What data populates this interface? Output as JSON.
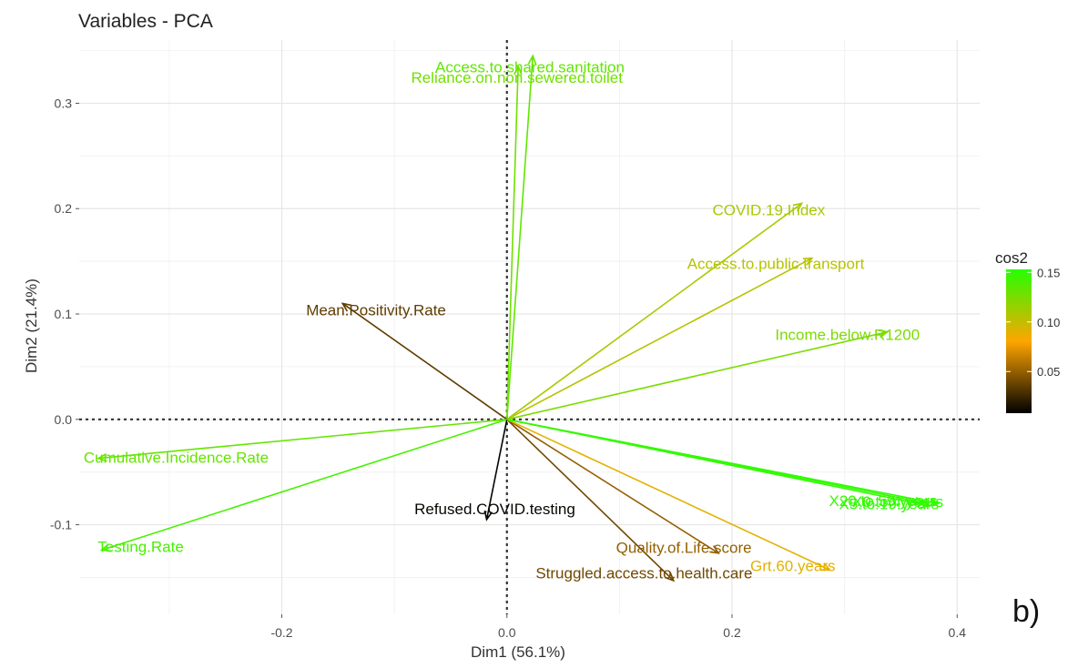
{
  "chart_data": {
    "type": "scatter",
    "subtype": "pca-variable-correlation-biplot",
    "title": "Variables - PCA",
    "xlabel": "Dim1 (56.1%)",
    "ylabel": "Dim2 (21.4%)",
    "xlim": [
      -0.38,
      0.42
    ],
    "ylim": [
      -0.185,
      0.36
    ],
    "xticks": [
      -0.2,
      0.0,
      0.2,
      0.4
    ],
    "xtick_labels": [
      "-0.2",
      "0.0",
      "0.2",
      "0.4"
    ],
    "yticks": [
      -0.1,
      0.0,
      0.1,
      0.2,
      0.3
    ],
    "ytick_labels": [
      "-0.1",
      "0.0",
      "0.1",
      "0.2",
      "0.3"
    ],
    "grid": true,
    "reference_lines": {
      "x": 0,
      "y": 0,
      "style": "dotted"
    },
    "color_scale": {
      "title": "cos2",
      "low": "#000000",
      "mid": "#ffa500",
      "high": "#26ff00",
      "range": [
        0.008,
        0.153
      ],
      "ticks": [
        0.05,
        0.1,
        0.15
      ],
      "tick_labels": [
        "0.05",
        "0.10",
        "0.15"
      ],
      "position": "right"
    },
    "variables": [
      {
        "name": "Access.to.shared.sanitation",
        "x": 0.023,
        "y": 0.345,
        "cos2": 0.133
      },
      {
        "name": "Reliance.on.non.sewered.toilet",
        "x": 0.01,
        "y": 0.335,
        "cos2": 0.128
      },
      {
        "name": "COVID.19.Index",
        "x": 0.262,
        "y": 0.205,
        "cos2": 0.11
      },
      {
        "name": "Access.to.public.transport",
        "x": 0.271,
        "y": 0.153,
        "cos2": 0.105
      },
      {
        "name": "Income.below.R1200",
        "x": 0.338,
        "y": 0.083,
        "cos2": 0.125
      },
      {
        "name": "Mean.Positivity.Rate",
        "x": -0.146,
        "y": 0.11,
        "cos2": 0.035
      },
      {
        "name": "Cumulative.Incidence.Rate",
        "x": -0.363,
        "y": -0.037,
        "cos2": 0.132
      },
      {
        "name": "Testing.Rate",
        "x": -0.36,
        "y": -0.124,
        "cos2": 0.142
      },
      {
        "name": "Refused.COVID.testing",
        "x": -0.018,
        "y": -0.095,
        "cos2": 0.01
      },
      {
        "name": "Quality.of.Life.score",
        "x": 0.188,
        "y": -0.127,
        "cos2": 0.05
      },
      {
        "name": "Struggled.access.to.health.care",
        "x": 0.148,
        "y": -0.153,
        "cos2": 0.04
      },
      {
        "name": "Grt.60.years",
        "x": 0.287,
        "y": -0.143,
        "cos2": 0.09
      },
      {
        "name": "X0.to.4.years",
        "x": 0.383,
        "y": -0.08,
        "cos2": 0.152
      },
      {
        "name": "X5.to.19.years",
        "x": 0.375,
        "y": -0.082,
        "cos2": 0.15
      },
      {
        "name": "X20.to.59.years",
        "x": 0.37,
        "y": -0.079,
        "cos2": 0.147
      }
    ]
  },
  "panel_letter": "b)"
}
